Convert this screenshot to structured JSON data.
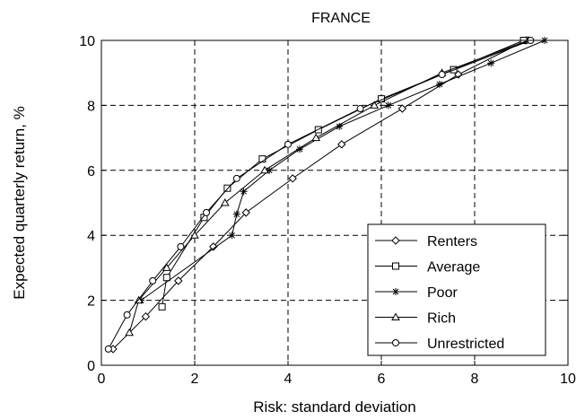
{
  "chart_data": {
    "type": "line",
    "title": "FRANCE",
    "xlabel": "Risk: standard deviation",
    "ylabel": "Expected quarterly return, %",
    "xlim": [
      0,
      10
    ],
    "ylim": [
      0,
      10
    ],
    "xticks": [
      "0",
      "2",
      "4",
      "6",
      "8",
      "10"
    ],
    "yticks": [
      "0",
      "2",
      "4",
      "6",
      "8",
      "10"
    ],
    "grid": true,
    "grid_style": "dashed",
    "legend_position": "bottom-right",
    "series": [
      {
        "name": "Renters",
        "marker": "diamond",
        "x": [
          0.25,
          0.95,
          1.65,
          2.4,
          3.1,
          4.1,
          5.15,
          6.45,
          7.65,
          9.1
        ],
        "y": [
          0.5,
          1.5,
          2.6,
          3.65,
          4.7,
          5.75,
          6.8,
          7.9,
          8.95,
          10.0
        ]
      },
      {
        "name": "Average",
        "marker": "square",
        "x": [
          1.3,
          1.4,
          2.2,
          2.7,
          3.45,
          4.65,
          6.0,
          7.55,
          9.05
        ],
        "y": [
          1.8,
          2.7,
          4.55,
          5.45,
          6.35,
          7.25,
          8.2,
          9.1,
          10.0
        ]
      },
      {
        "name": "Poor",
        "marker": "star",
        "x": [
          0.85,
          2.8,
          2.9,
          3.05,
          3.6,
          4.25,
          5.1,
          6.15,
          7.25,
          8.35,
          9.5
        ],
        "y": [
          2.0,
          4.0,
          4.65,
          5.35,
          6.0,
          6.65,
          7.35,
          8.0,
          8.65,
          9.3,
          10.0
        ]
      },
      {
        "name": "Rich",
        "marker": "triangle",
        "x": [
          0.6,
          0.8,
          1.4,
          2.0,
          2.65,
          3.5,
          4.6,
          5.85,
          7.3,
          9.15
        ],
        "y": [
          1.0,
          2.0,
          3.0,
          4.0,
          5.0,
          6.0,
          7.0,
          8.0,
          9.0,
          10.0
        ]
      },
      {
        "name": "Unrestricted",
        "marker": "circle",
        "x": [
          0.15,
          0.55,
          1.1,
          1.7,
          2.25,
          2.9,
          4.0,
          5.55,
          7.3,
          9.2
        ],
        "y": [
          0.5,
          1.55,
          2.6,
          3.65,
          4.7,
          5.75,
          6.8,
          7.9,
          8.95,
          10.0
        ]
      }
    ]
  }
}
